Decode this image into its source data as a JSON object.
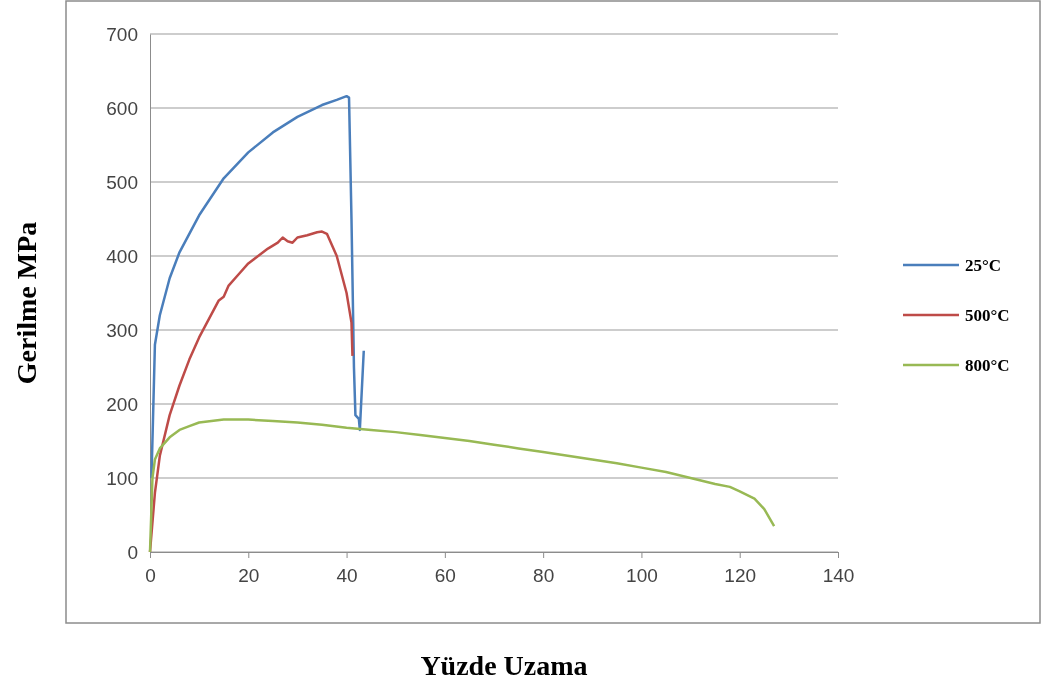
{
  "chart_data": {
    "type": "line",
    "xlabel": "Yüzde Uzama",
    "ylabel": "Gerilme MPa",
    "xlim": [
      0,
      140
    ],
    "xticks": [
      0,
      20,
      40,
      60,
      80,
      100,
      120,
      140
    ],
    "ylim": [
      0,
      700
    ],
    "yticks": [
      0,
      100,
      200,
      300,
      400,
      500,
      600,
      700
    ],
    "grid": "y",
    "legend": "right",
    "marker": "none",
    "line_style": "solid",
    "series": [
      {
        "name": "25°C",
        "color": "#4a7ebb",
        "x": [
          0.3,
          1,
          2,
          4,
          6,
          10,
          15,
          20,
          25,
          30,
          35,
          38,
          40,
          40.5,
          41,
          41.5,
          41.8,
          42.5,
          42.7,
          43.5
        ],
        "values": [
          100,
          280,
          320,
          370,
          405,
          455,
          505,
          540,
          567,
          588,
          604,
          611,
          616,
          614,
          450,
          250,
          185,
          180,
          165,
          272
        ]
      },
      {
        "name": "500°C",
        "color": "#be4b48",
        "x": [
          0,
          1,
          2,
          4,
          6,
          8,
          10,
          12,
          14,
          15,
          16,
          18,
          20,
          22,
          24,
          26,
          27,
          28,
          29,
          30,
          32,
          34,
          35,
          36,
          38,
          40,
          41,
          41.2
        ],
        "values": [
          0,
          80,
          130,
          185,
          225,
          260,
          290,
          315,
          340,
          345,
          360,
          375,
          390,
          400,
          410,
          418,
          425,
          420,
          418,
          425,
          428,
          432,
          433,
          430,
          400,
          350,
          310,
          265
        ]
      },
      {
        "name": "800°C",
        "color": "#98b954",
        "x": [
          0,
          0.5,
          1,
          2,
          4,
          6,
          8,
          10,
          15,
          20,
          25,
          30,
          35,
          40,
          45,
          50,
          55,
          60,
          65,
          70,
          75,
          80,
          85,
          90,
          95,
          100,
          105,
          110,
          115,
          118,
          120,
          123,
          125,
          127
        ],
        "values": [
          0,
          100,
          125,
          140,
          155,
          165,
          170,
          175,
          179,
          179,
          177,
          175,
          172,
          168,
          165,
          162,
          158,
          154,
          150,
          145,
          140,
          135,
          130,
          125,
          120,
          114,
          108,
          100,
          92,
          88,
          82,
          72,
          58,
          35
        ]
      }
    ]
  }
}
